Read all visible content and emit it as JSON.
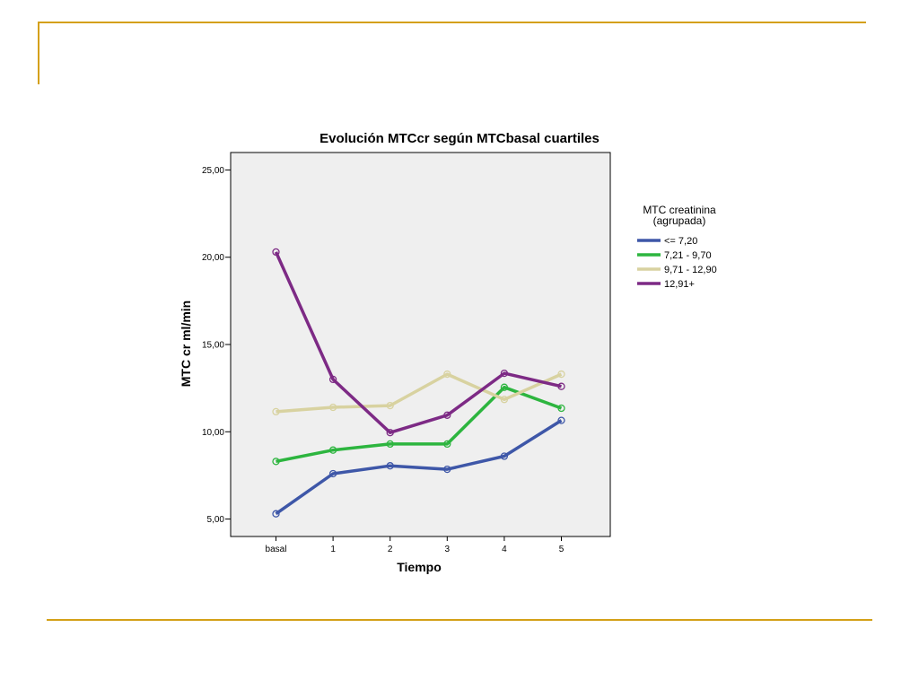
{
  "chart_data": {
    "type": "line",
    "title": "Evolución MTCcr según MTCbasal cuartiles",
    "xlabel": "Tiempo",
    "ylabel": "MTC cr ml/min",
    "categories": [
      "basal",
      "1",
      "2",
      "3",
      "4",
      "5"
    ],
    "ylim": [
      4,
      26
    ],
    "yticks": [
      5,
      10,
      15,
      20,
      25
    ],
    "ytick_labels": [
      "5,00",
      "10,00",
      "15,00",
      "20,00",
      "25,00"
    ],
    "grid": false,
    "background": "#efefef",
    "legend_title_lines": [
      "MTC creatinina",
      "(agrupada)"
    ],
    "legend_position": "right",
    "series": [
      {
        "name": "<= 7,20",
        "color": "#3e57a8",
        "values": [
          5.3,
          7.6,
          8.05,
          7.85,
          8.6,
          10.65
        ]
      },
      {
        "name": "7,21 - 9,70",
        "color": "#2db53f",
        "values": [
          8.3,
          8.95,
          9.3,
          9.3,
          12.55,
          11.35
        ]
      },
      {
        "name": "9,71 - 12,90",
        "color": "#d8d2a0",
        "values": [
          11.15,
          11.4,
          11.5,
          13.3,
          11.85,
          13.3
        ]
      },
      {
        "name": "12,91+",
        "color": "#7d2a85",
        "values": [
          20.3,
          13.0,
          9.95,
          10.95,
          13.35,
          12.6
        ]
      }
    ]
  }
}
